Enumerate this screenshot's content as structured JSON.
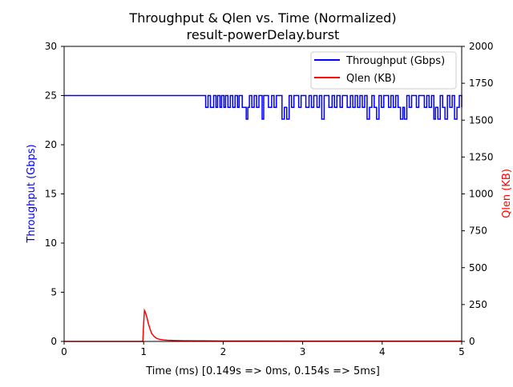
{
  "chart_data": {
    "type": "line",
    "title": "Throughput & Qlen vs. Time (Normalized)",
    "subtitle": "result-powerDelay.burst",
    "xlabel": "Time (ms) [0.149s => 0ms, 0.154s => 5ms]",
    "ylabel_left": "Throughput (Gbps)",
    "ylabel_right": "Qlen (KB)",
    "xlim": [
      0,
      5
    ],
    "ylim_left": [
      0,
      30
    ],
    "ylim_right": [
      0,
      2000
    ],
    "x_ticks": [
      "0",
      "1",
      "2",
      "3",
      "4",
      "5"
    ],
    "y_ticks_left": [
      "0",
      "5",
      "10",
      "15",
      "20",
      "25",
      "30"
    ],
    "y_ticks_right": [
      "0",
      "250",
      "500",
      "750",
      "1000",
      "1250",
      "1500",
      "1750",
      "2000"
    ],
    "grid": false,
    "legend_position": "top-right",
    "colors": {
      "throughput": "#0000ff",
      "qlen": "#ff0000",
      "left_label": "#0000ff",
      "right_label": "#ff0000"
    },
    "series": [
      {
        "name": "Throughput (Gbps)",
        "axis": "left",
        "x": [
          0,
          1.75,
          1.78,
          1.81,
          1.84,
          1.88,
          1.91,
          1.93,
          1.96,
          1.98,
          2.01,
          2.03,
          2.06,
          2.09,
          2.12,
          2.15,
          2.18,
          2.2,
          2.24,
          2.29,
          2.31,
          2.33,
          2.36,
          2.39,
          2.42,
          2.45,
          2.49,
          2.51,
          2.54,
          2.57,
          2.61,
          2.64,
          2.67,
          2.7,
          2.74,
          2.77,
          2.8,
          2.83,
          2.86,
          2.89,
          2.92,
          2.95,
          2.98,
          3.0,
          3.04,
          3.08,
          3.11,
          3.14,
          3.18,
          3.21,
          3.24,
          3.27,
          3.3,
          3.33,
          3.37,
          3.4,
          3.43,
          3.47,
          3.5,
          3.53,
          3.56,
          3.6,
          3.63,
          3.66,
          3.69,
          3.72,
          3.75,
          3.78,
          3.81,
          3.84,
          3.87,
          3.9,
          3.93,
          3.96,
          3.99,
          4.02,
          4.05,
          4.08,
          4.11,
          4.14,
          4.17,
          4.2,
          4.23,
          4.26,
          4.28,
          4.31,
          4.34,
          4.37,
          4.4,
          4.43,
          4.46,
          4.5,
          4.53,
          4.56,
          4.59,
          4.62,
          4.65,
          4.67,
          4.7,
          4.73,
          4.76,
          4.79,
          4.82,
          4.85,
          4.88,
          4.91,
          4.94,
          4.97,
          5.0
        ],
        "y": [
          25,
          25,
          23.8,
          25,
          23.8,
          25,
          23.8,
          25,
          23.8,
          25,
          23.8,
          25,
          23.8,
          25,
          23.8,
          25,
          23.8,
          25,
          23.8,
          22.6,
          23.8,
          25,
          23.8,
          25,
          23.8,
          25,
          22.6,
          25,
          25,
          23.8,
          25,
          23.8,
          25,
          25,
          22.6,
          23.8,
          22.6,
          25,
          23.8,
          25,
          25,
          23.8,
          25,
          25,
          23.8,
          25,
          23.8,
          25,
          23.8,
          25,
          22.6,
          25,
          25,
          23.8,
          25,
          23.8,
          25,
          23.8,
          25,
          25,
          23.8,
          25,
          23.8,
          25,
          23.8,
          25,
          23.8,
          25,
          22.6,
          23.8,
          25,
          23.8,
          22.6,
          25,
          23.8,
          25,
          25,
          23.8,
          25,
          23.8,
          25,
          23.8,
          22.6,
          23.8,
          22.6,
          25,
          23.8,
          25,
          25,
          23.8,
          25,
          25,
          23.8,
          25,
          23.8,
          25,
          22.6,
          23.8,
          22.6,
          25,
          23.8,
          22.6,
          25,
          23.8,
          25,
          22.6,
          23.8,
          25,
          23.8
        ]
      },
      {
        "name": "Qlen (KB)",
        "axis": "right",
        "x": [
          0,
          0.99,
          1.0,
          1.01,
          1.02,
          1.04,
          1.06,
          1.08,
          1.1,
          1.13,
          1.16,
          1.2,
          1.25,
          1.3,
          1.4,
          1.5,
          1.7,
          2.0,
          2.5,
          3.0,
          3.5,
          4.0,
          4.5,
          5.0
        ],
        "y": [
          0,
          0,
          120,
          210,
          200,
          165,
          120,
          85,
          55,
          35,
          22,
          14,
          10,
          8,
          6,
          5,
          4,
          3,
          3,
          2,
          2,
          2,
          2,
          2
        ]
      }
    ]
  }
}
